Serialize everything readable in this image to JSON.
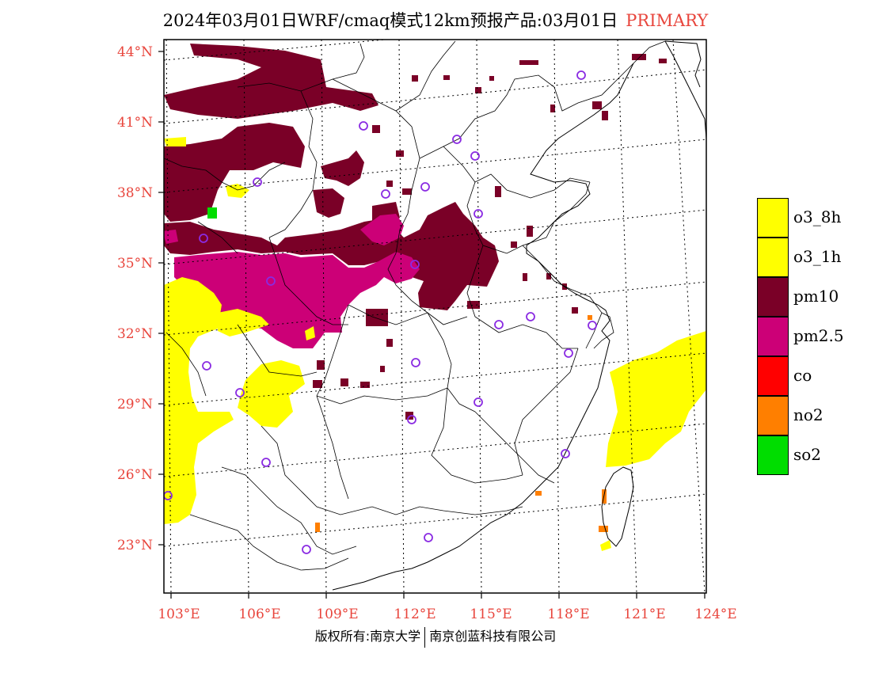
{
  "title": {
    "main": "2024年03月01日WRF/cmaq模式12km预报产品:03月01日",
    "tag": "PRIMARY"
  },
  "copyright": {
    "left": "版权所有:南京大学",
    "right": "南京创蓝科技有限公司"
  },
  "axes": {
    "lat_labels": [
      "44°N",
      "41°N",
      "38°N",
      "35°N",
      "32°N",
      "29°N",
      "26°N",
      "23°N"
    ],
    "lon_labels": [
      "103°E",
      "106°E",
      "109°E",
      "112°E",
      "115°E",
      "118°E",
      "121°E",
      "124°E"
    ],
    "label_color": "#e8453c"
  },
  "legend": [
    {
      "label": "o3_8h",
      "color": "#ffff00"
    },
    {
      "label": "o3_1h",
      "color": "#ffff00"
    },
    {
      "label": "pm10",
      "color": "#7a0027"
    },
    {
      "label": "pm2.5",
      "color": "#cc0077"
    },
    {
      "label": "co",
      "color": "#ff0000"
    },
    {
      "label": "no2",
      "color": "#ff7f00"
    },
    {
      "label": "so2",
      "color": "#00dd00"
    }
  ],
  "colors": {
    "pm10": "#7a0027",
    "pm25": "#cc0077",
    "o3": "#ffff00",
    "no2": "#ff7f00",
    "so2": "#00dd00",
    "station": "#8a2be2"
  }
}
